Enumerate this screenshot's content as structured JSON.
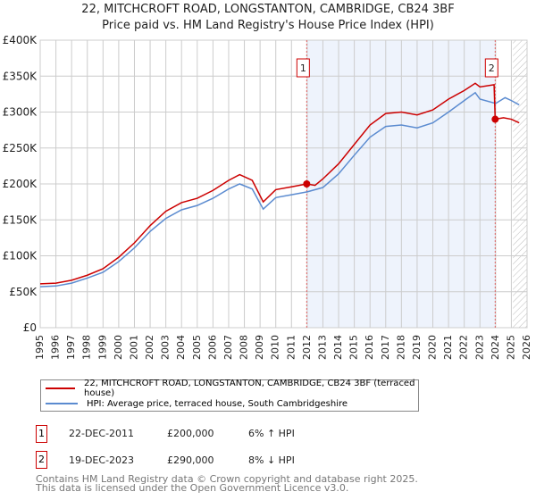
{
  "title": "22, MITCHCROFT ROAD, LONGSTANTON, CAMBRIDGE, CB24 3BF",
  "subtitle": "Price paid vs. HM Land Registry's House Price Index (HPI)",
  "chart_data": {
    "type": "line",
    "ylim": [
      0,
      400000
    ],
    "xlim": [
      1995,
      2026
    ],
    "yticks": [
      {
        "v": 0,
        "label": "£0"
      },
      {
        "v": 50000,
        "label": "£50K"
      },
      {
        "v": 100000,
        "label": "£100K"
      },
      {
        "v": 150000,
        "label": "£150K"
      },
      {
        "v": 200000,
        "label": "£200K"
      },
      {
        "v": 250000,
        "label": "£250K"
      },
      {
        "v": 300000,
        "label": "£300K"
      },
      {
        "v": 350000,
        "label": "£350K"
      },
      {
        "v": 400000,
        "label": "£400K"
      }
    ],
    "xticks": [
      "1995",
      "1996",
      "1997",
      "1998",
      "1999",
      "2000",
      "2001",
      "2002",
      "2003",
      "2004",
      "2005",
      "2006",
      "2007",
      "2008",
      "2009",
      "2010",
      "2011",
      "2012",
      "2013",
      "2014",
      "2015",
      "2016",
      "2017",
      "2018",
      "2019",
      "2020",
      "2021",
      "2022",
      "2023",
      "2024",
      "2025",
      "2026"
    ],
    "series": [
      {
        "name": "22, MITCHCROFT ROAD, LONGSTANTON, CAMBRIDGE, CB24 3BF (terraced house)",
        "color": "#cc0000",
        "x": [
          1995,
          1996,
          1997,
          1998,
          1999,
          2000,
          2001,
          2002,
          2003,
          2004,
          2005,
          2006,
          2007,
          2007.7,
          2008.5,
          2009.2,
          2010,
          2011,
          2011.97,
          2012.5,
          2013,
          2014,
          2015,
          2016,
          2017,
          2018,
          2019,
          2020,
          2021,
          2022,
          2022.7,
          2023,
          2023.9,
          2023.97,
          2024.5,
          2025,
          2025.5
        ],
        "y": [
          61000,
          62000,
          66000,
          73000,
          82000,
          98000,
          118000,
          142000,
          162000,
          174000,
          180000,
          191000,
          205000,
          213000,
          205000,
          175000,
          192000,
          196000,
          200000,
          198000,
          207000,
          228000,
          255000,
          282000,
          298000,
          300000,
          296000,
          303000,
          318000,
          330000,
          340000,
          335000,
          338000,
          290000,
          292000,
          290000,
          285000
        ]
      },
      {
        "name": "HPI: Average price, terraced house, South Cambridgeshire",
        "color": "#5b8bd0",
        "x": [
          1995,
          1996,
          1997,
          1998,
          1999,
          2000,
          2001,
          2002,
          2003,
          2004,
          2005,
          2006,
          2007,
          2007.7,
          2008.5,
          2009.2,
          2010,
          2011,
          2012,
          2013,
          2014,
          2015,
          2016,
          2017,
          2018,
          2019,
          2020,
          2021,
          2022,
          2022.7,
          2023,
          2024,
          2024.6,
          2025,
          2025.5
        ],
        "y": [
          57000,
          58000,
          62000,
          69000,
          77000,
          92000,
          111000,
          134000,
          152000,
          164000,
          170000,
          180000,
          193000,
          200000,
          193000,
          165000,
          181000,
          185000,
          189000,
          195000,
          214000,
          240000,
          265000,
          280000,
          282000,
          278000,
          285000,
          300000,
          316000,
          327000,
          318000,
          312000,
          320000,
          316000,
          310000
        ]
      }
    ],
    "annotations": [
      {
        "label": "1",
        "x": 2011.97,
        "y": 200000
      },
      {
        "label": "2",
        "x": 2023.97,
        "y": 290000
      }
    ]
  },
  "legend": {
    "red": "22, MITCHCROFT ROAD, LONGSTANTON, CAMBRIDGE, CB24 3BF (terraced house)",
    "blue": "HPI: Average price, terraced house, South Cambridgeshire"
  },
  "sales": [
    {
      "num": "1",
      "date": "22-DEC-2011",
      "price": "£200,000",
      "hpi": "6% ↑ HPI"
    },
    {
      "num": "2",
      "date": "19-DEC-2023",
      "price": "£290,000",
      "hpi": "8% ↓ HPI"
    }
  ],
  "footer": {
    "line1": "Contains HM Land Registry data © Crown copyright and database right 2025.",
    "line2": "This data is licensed under the Open Government Licence v3.0."
  }
}
